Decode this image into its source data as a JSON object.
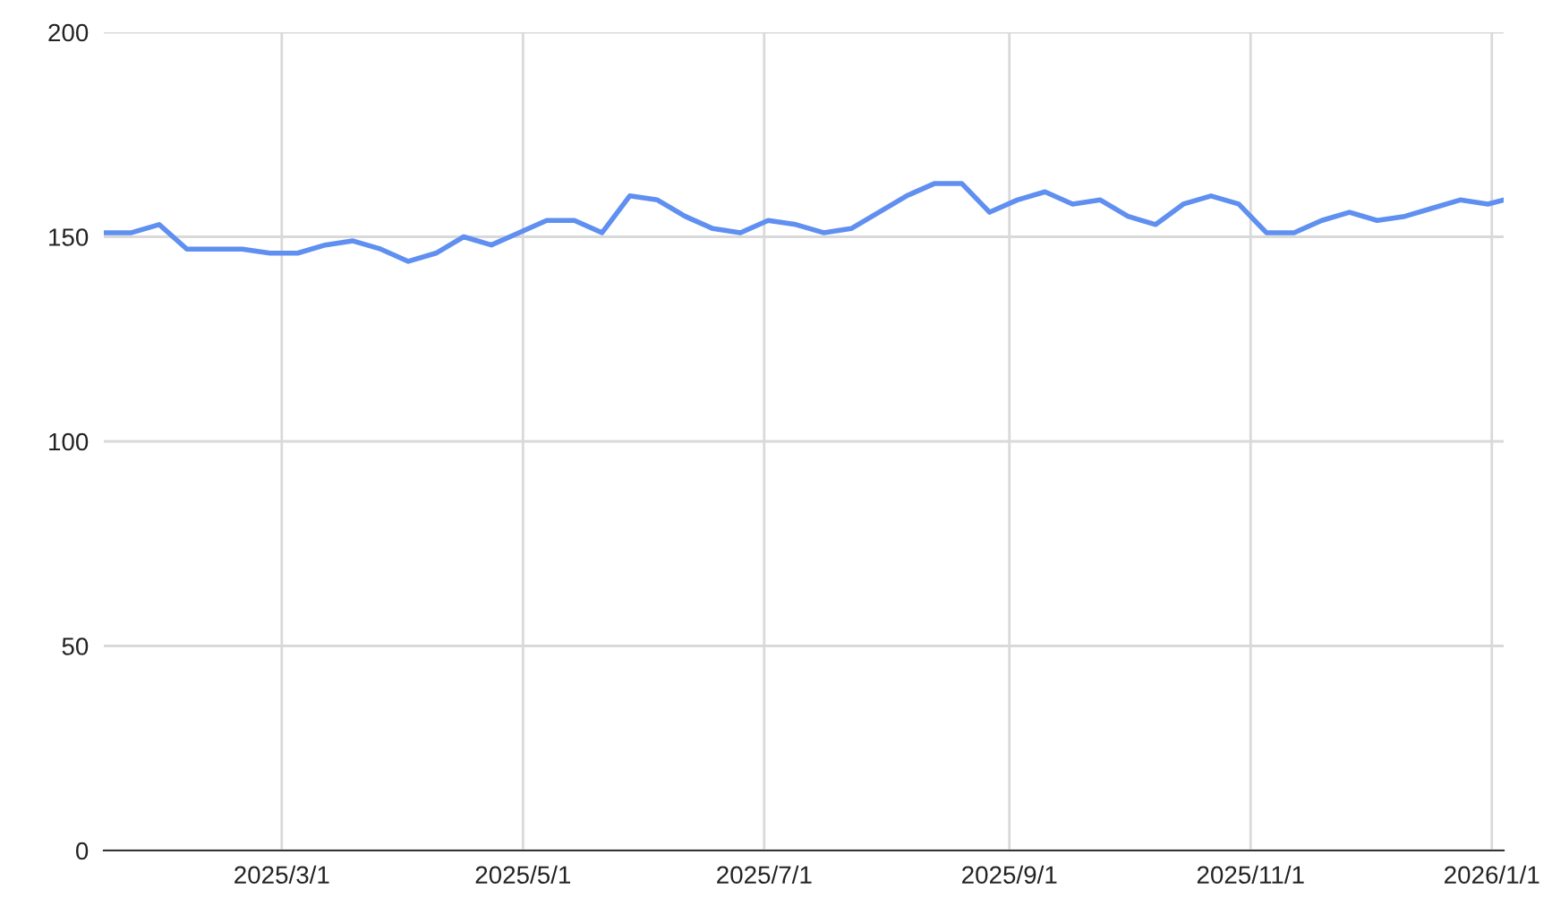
{
  "chart_data": {
    "type": "line",
    "x": [
      "2025-01-15",
      "2025-01-22",
      "2025-01-29",
      "2025-02-05",
      "2025-02-12",
      "2025-02-19",
      "2025-02-26",
      "2025-03-05",
      "2025-03-12",
      "2025-03-19",
      "2025-03-26",
      "2025-04-02",
      "2025-04-09",
      "2025-04-16",
      "2025-04-23",
      "2025-04-30",
      "2025-05-07",
      "2025-05-14",
      "2025-05-21",
      "2025-05-28",
      "2025-06-04",
      "2025-06-11",
      "2025-06-18",
      "2025-06-25",
      "2025-07-02",
      "2025-07-09",
      "2025-07-16",
      "2025-07-23",
      "2025-07-30",
      "2025-08-06",
      "2025-08-13",
      "2025-08-20",
      "2025-08-27",
      "2025-09-03",
      "2025-09-10",
      "2025-09-17",
      "2025-09-24",
      "2025-10-01",
      "2025-10-08",
      "2025-10-15",
      "2025-10-22",
      "2025-10-29",
      "2025-11-05",
      "2025-11-12",
      "2025-11-19",
      "2025-11-26",
      "2025-12-03",
      "2025-12-10",
      "2025-12-17",
      "2025-12-24",
      "2025-12-31",
      "2026-01-04"
    ],
    "series": [
      {
        "color": "#5f8ff0",
        "values": [
          151,
          151,
          153,
          147,
          147,
          147,
          146,
          146,
          148,
          149,
          147,
          144,
          146,
          150,
          148,
          151,
          154,
          154,
          151,
          160,
          159,
          155,
          152,
          151,
          154,
          153,
          151,
          152,
          156,
          160,
          163,
          163,
          156,
          159,
          161,
          158,
          159,
          155,
          153,
          158,
          160,
          158,
          151,
          151,
          154,
          156,
          154,
          155,
          157,
          159,
          158,
          159
        ]
      }
    ],
    "xlim": [
      "2025-01-15",
      "2026-01-04"
    ],
    "xticks": [
      {
        "value": "2025-03-01",
        "label": "2025/3/1"
      },
      {
        "value": "2025-05-01",
        "label": "2025/5/1"
      },
      {
        "value": "2025-07-01",
        "label": "2025/7/1"
      },
      {
        "value": "2025-09-01",
        "label": "2025/9/1"
      },
      {
        "value": "2025-11-01",
        "label": "2025/11/1"
      },
      {
        "value": "2026-01-01",
        "label": "2026/1/1"
      }
    ],
    "ylim": [
      0,
      200
    ],
    "yticks": [
      0,
      50,
      100,
      150,
      200
    ],
    "grid": true,
    "marker": "none",
    "line_style": "solid"
  }
}
